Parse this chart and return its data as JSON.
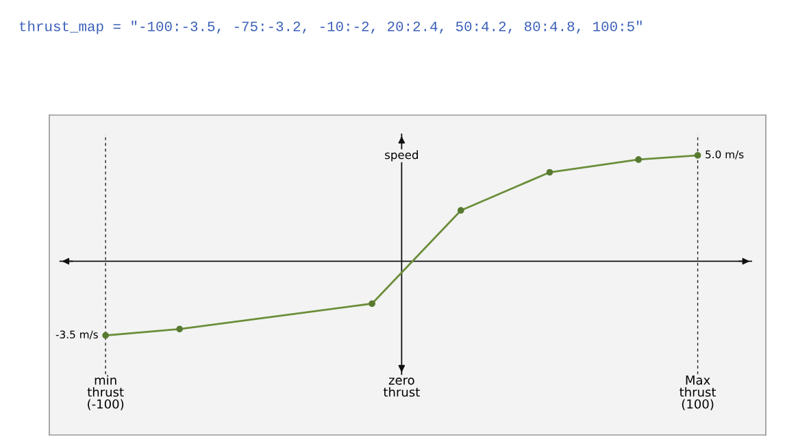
{
  "chart_data": {
    "type": "line",
    "annotations": [
      "thrust_map = \"-100:-3.5, -75:-3.2, -10:-2, 20:2.4, 50:4.2, 80:4.8, 100:5\""
    ],
    "ylabel": "speed",
    "x": [
      -100,
      -75,
      -10,
      20,
      50,
      80,
      100
    ],
    "series": [
      {
        "color": "#6b8e3a",
        "values": [
          -3.5,
          -3.2,
          -2,
          2.4,
          4.2,
          4.8,
          5
        ],
        "value_labels": [
          "-3.5 m/s",
          null,
          null,
          null,
          null,
          null,
          "5.0 m/s"
        ]
      }
    ],
    "marker": "circle",
    "line_style": "solid",
    "xlim": [
      -119,
      123
    ],
    "ylim": [
      -8.2,
      6.9
    ],
    "xticks": [
      {
        "value": -100,
        "label": "min\nthrust\n(-100)"
      },
      {
        "value": 0,
        "label": "zero\nthrust"
      },
      {
        "value": 100,
        "label": "Max\nthrust\n(100)"
      }
    ],
    "tick_labels": "x",
    "ref_lines": [
      {
        "axis": "x",
        "value": -100,
        "label": null,
        "line_style": "dashed",
        "color": "#222222"
      },
      {
        "axis": "x",
        "value": 0,
        "label": null,
        "line_style": "solid",
        "color": "#111111"
      },
      {
        "axis": "x",
        "value": 100,
        "label": null,
        "line_style": "dashed",
        "color": "#222222"
      },
      {
        "axis": "y",
        "value": 0,
        "label": null,
        "line_style": "solid",
        "color": "#111111"
      }
    ]
  }
}
